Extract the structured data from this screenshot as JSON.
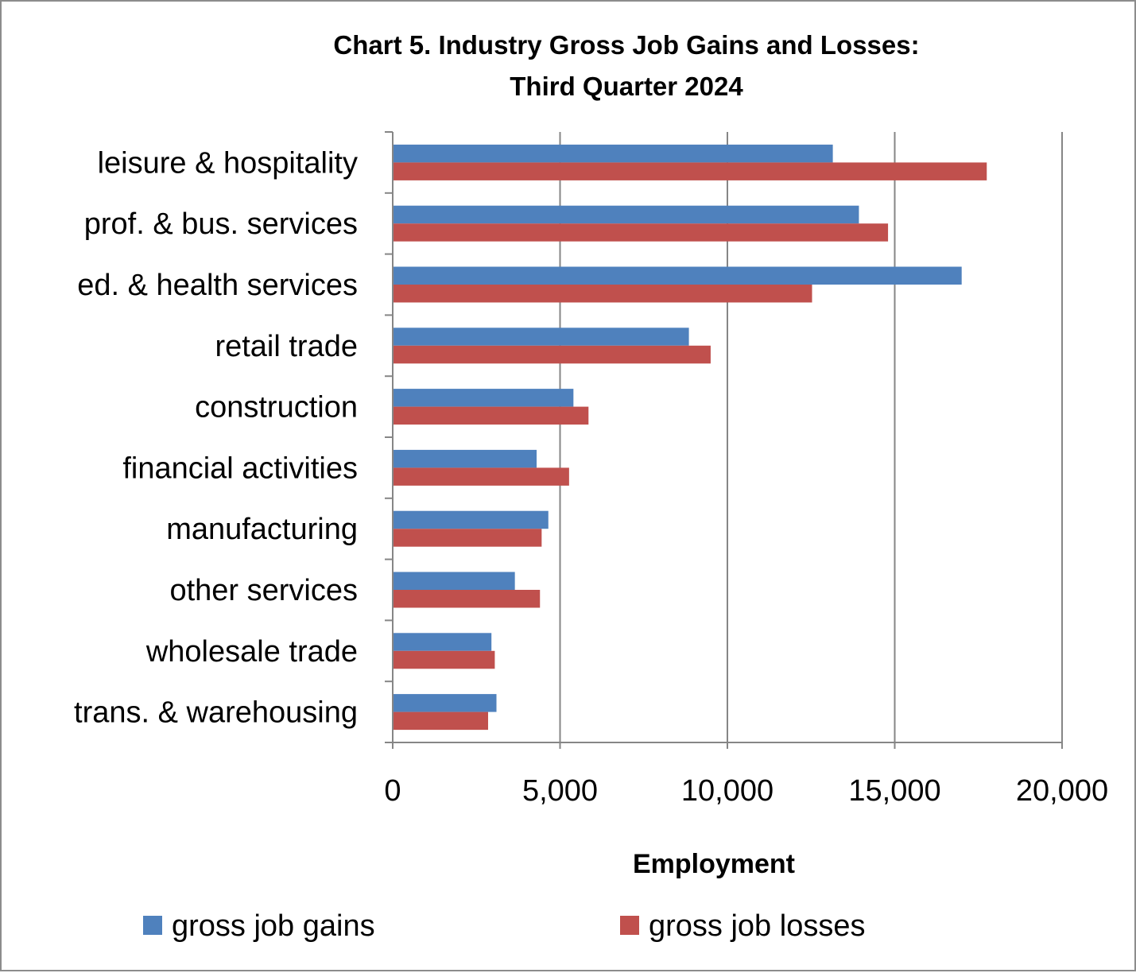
{
  "chart_data": {
    "type": "bar",
    "orientation": "horizontal",
    "title": [
      "Chart 5. Industry Gross Job Gains and Losses:",
      "Third Quarter 2024"
    ],
    "xlabel": "Employment",
    "ylabel": "",
    "xlim": [
      0,
      20000
    ],
    "x_ticks": [
      0,
      5000,
      10000,
      15000,
      20000
    ],
    "x_tick_labels": [
      "0",
      "5,000",
      "10,000",
      "15,000",
      "20,000"
    ],
    "grid": "vertical",
    "legend_position": "bottom",
    "categories": [
      "leisure & hospitality",
      "prof. & bus. services",
      "ed. & health services",
      "retail trade",
      "construction",
      "financial activities",
      "manufacturing",
      "other services",
      "wholesale trade",
      "trans. & warehousing"
    ],
    "series": [
      {
        "name": "gross job gains",
        "color": "#4f81bd",
        "values": [
          13150,
          13930,
          17000,
          8850,
          5400,
          4300,
          4650,
          3650,
          2950,
          3100
        ]
      },
      {
        "name": "gross job losses",
        "color": "#c0504d",
        "values": [
          17750,
          14800,
          12530,
          9500,
          5850,
          5270,
          4450,
          4400,
          3050,
          2850
        ]
      }
    ]
  }
}
